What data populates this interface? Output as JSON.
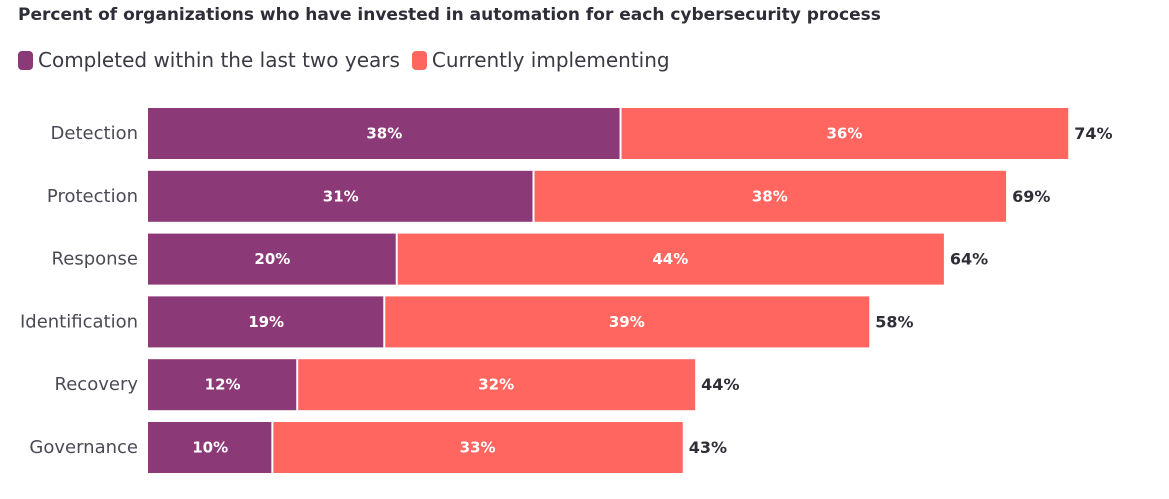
{
  "colors": {
    "completed": "#8c3978",
    "implementing": "#ff6660"
  },
  "chart_data": {
    "type": "bar",
    "orientation": "horizontal",
    "stacked": true,
    "title": "Percent of organizations who have invested in automation for each cybersecurity process",
    "legend_position": "top-left",
    "categories": [
      "Detection",
      "Protection",
      "Response",
      "Identification",
      "Recovery",
      "Governance"
    ],
    "series": [
      {
        "name": "Completed within the last two years",
        "values": [
          38,
          31,
          20,
          19,
          12,
          10
        ],
        "labels": [
          "38%",
          "31%",
          "20%",
          "19%",
          "12%",
          "10%"
        ]
      },
      {
        "name": "Currently implementing",
        "values": [
          36,
          38,
          44,
          39,
          32,
          33
        ],
        "labels": [
          "36%",
          "38%",
          "44%",
          "39%",
          "32%",
          "33%"
        ]
      }
    ],
    "totals": [
      "74%",
      "69%",
      "64%",
      "58%",
      "44%",
      "43%"
    ],
    "xlim": [
      0,
      78
    ],
    "grid": false
  }
}
